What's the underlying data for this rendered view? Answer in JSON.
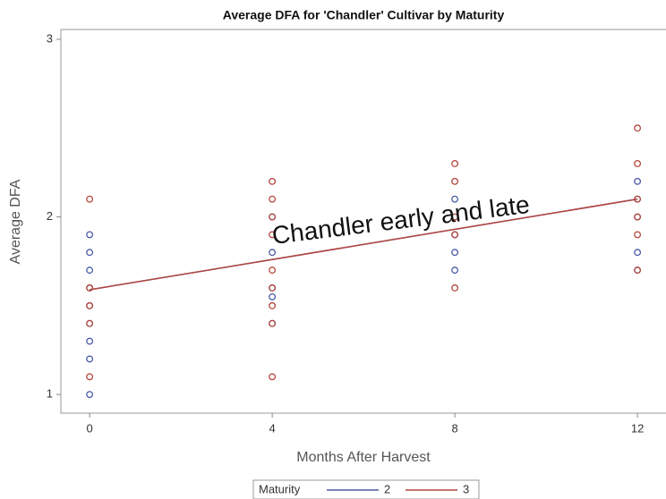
{
  "chart_data": {
    "type": "scatter",
    "title": "Average DFA for 'Chandler' Cultivar by Maturity",
    "x_label": "Months After Harvest",
    "y_label": "Average DFA",
    "annotation": "Chandler early and late",
    "legend_title": "Maturity",
    "xlim": [
      -0.63,
      12.9
    ],
    "ylim": [
      0.895,
      3.055
    ],
    "xticks": [
      0,
      4,
      8,
      12
    ],
    "yticks": [
      1,
      2,
      3
    ],
    "series": [
      {
        "name": "2",
        "color": "#4b5ba6",
        "x": [
          0,
          0,
          0,
          0,
          0,
          0,
          0,
          0,
          0,
          4,
          4,
          4,
          4,
          4,
          8,
          8,
          8,
          8,
          12,
          12,
          12,
          12,
          12
        ],
        "values": [
          1.9,
          1.8,
          1.7,
          1.6,
          1.5,
          1.4,
          1.3,
          1.2,
          1.0,
          2.0,
          1.8,
          1.55,
          1.6,
          1.4,
          2.1,
          1.8,
          1.7,
          1.9,
          2.2,
          1.7,
          1.8,
          2.1,
          2.0
        ],
        "fit": {
          "x": [
            0,
            12
          ],
          "values": [
            1.59,
            2.1
          ]
        }
      },
      {
        "name": "3",
        "color": "#b4473d",
        "x": [
          0,
          0,
          0,
          0,
          0,
          4,
          4,
          4,
          4,
          4,
          4,
          4,
          4,
          4,
          8,
          8,
          8,
          8,
          8,
          12,
          12,
          12,
          12,
          12,
          12
        ],
        "values": [
          2.1,
          1.6,
          1.5,
          1.4,
          1.1,
          2.2,
          2.1,
          1.9,
          1.7,
          1.6,
          1.5,
          1.4,
          1.1,
          2.0,
          2.3,
          2.2,
          2.0,
          1.9,
          1.6,
          2.5,
          2.3,
          2.1,
          2.0,
          1.9,
          1.7
        ],
        "fit": {
          "x": [
            0,
            12
          ],
          "values": [
            1.59,
            2.1
          ]
        }
      }
    ]
  }
}
